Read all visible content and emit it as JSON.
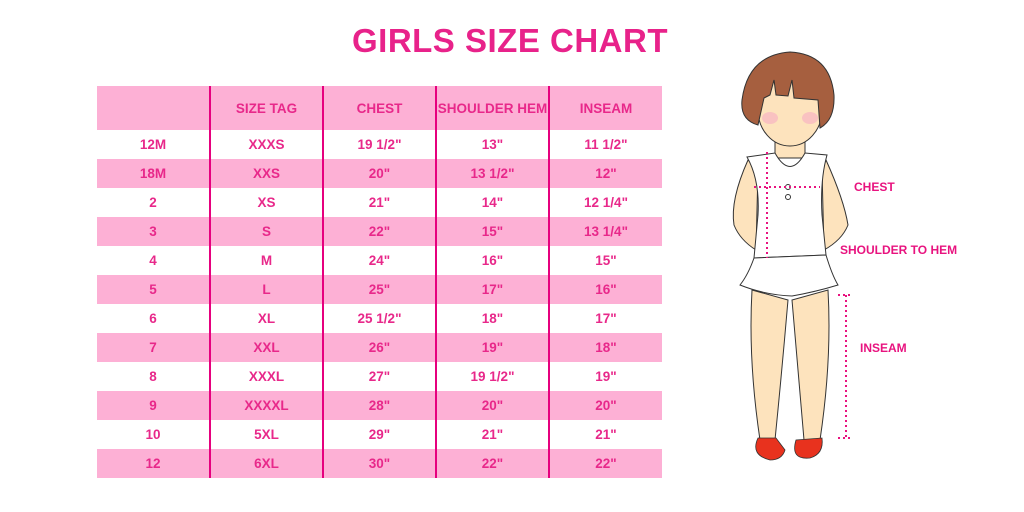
{
  "title": "GIRLS SIZE CHART",
  "table": {
    "headers": [
      "",
      "SIZE TAG",
      "CHEST",
      "SHOULDER HEM",
      "INSEAM"
    ],
    "rows": [
      [
        "12M",
        "XXXS",
        "19 1/2\"",
        "13\"",
        "11 1/2\""
      ],
      [
        "18M",
        "XXS",
        "20\"",
        "13 1/2\"",
        "12\""
      ],
      [
        "2",
        "XS",
        "21\"",
        "14\"",
        "12 1/4\""
      ],
      [
        "3",
        "S",
        "22\"",
        "15\"",
        "13 1/4\""
      ],
      [
        "4",
        "M",
        "24\"",
        "16\"",
        "15\""
      ],
      [
        "5",
        "L",
        "25\"",
        "17\"",
        "16\""
      ],
      [
        "6",
        "XL",
        "25 1/2\"",
        "18\"",
        "17\""
      ],
      [
        "7",
        "XXL",
        "26\"",
        "19\"",
        "18\""
      ],
      [
        "8",
        "XXXL",
        "27\"",
        "19 1/2\"",
        "19\""
      ],
      [
        "9",
        "XXXXL",
        "28\"",
        "20\"",
        "20\""
      ],
      [
        "10",
        "5XL",
        "29\"",
        "21\"",
        "21\""
      ],
      [
        "12",
        "6XL",
        "30\"",
        "22\"",
        "22\""
      ]
    ]
  },
  "figure": {
    "labels": {
      "chest": "CHEST",
      "shoulder_to_hem": "SHOULDER TO HEM",
      "inseam": "INSEAM"
    }
  },
  "colors": {
    "accent": "#e8288a",
    "row_fill": "#fdb0d5",
    "divider": "#e6007e"
  }
}
